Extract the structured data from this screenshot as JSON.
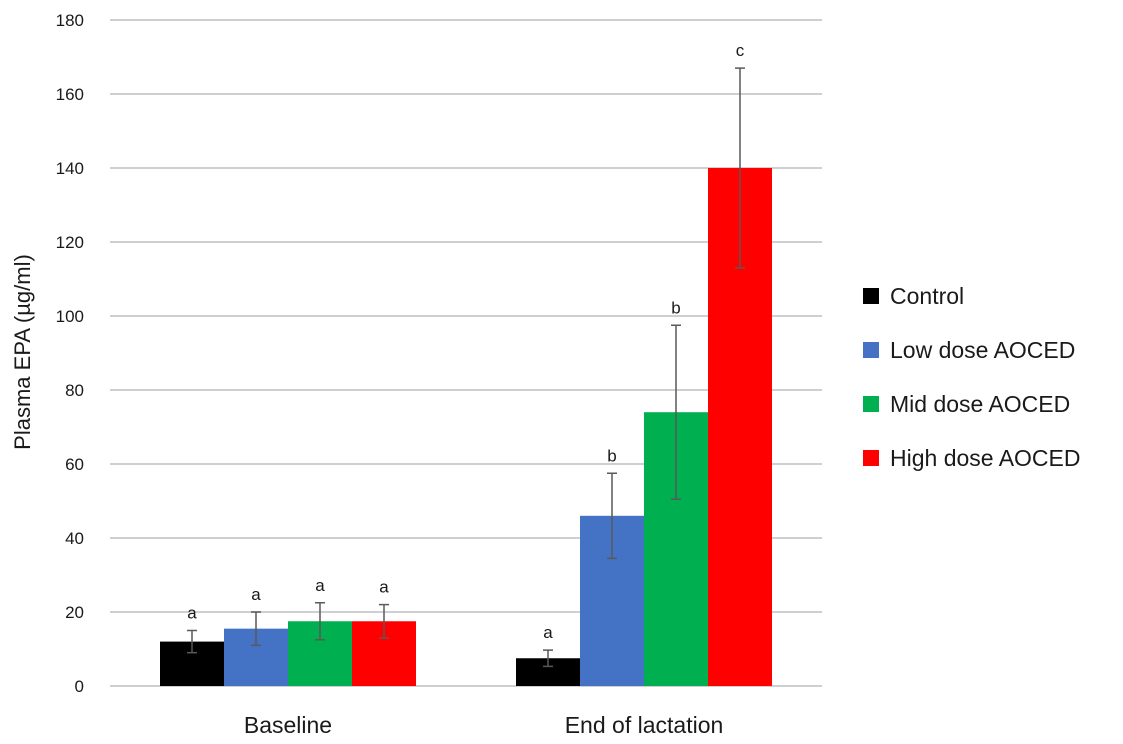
{
  "chart_data": {
    "type": "bar",
    "title": "",
    "xlabel": "",
    "ylabel": "Plasma EPA (µg/ml)",
    "ylim": [
      0,
      180
    ],
    "yticks": [
      0,
      20,
      40,
      60,
      80,
      100,
      120,
      140,
      160,
      180
    ],
    "grid": "horizontal",
    "legend_position": "right",
    "categories": [
      "Baseline",
      "End of lactation"
    ],
    "series": [
      {
        "name": "Control",
        "color": "#000000",
        "values": [
          12,
          7.5
        ],
        "errors": [
          3,
          2.2
        ],
        "labels": [
          "a",
          "a"
        ]
      },
      {
        "name": "Low dose AOCED",
        "color": "#4472C4",
        "values": [
          15.5,
          46
        ],
        "errors": [
          4.5,
          11.5
        ],
        "labels": [
          "a",
          "b"
        ]
      },
      {
        "name": "Mid dose AOCED",
        "color": "#00B050",
        "values": [
          17.5,
          74
        ],
        "errors": [
          5,
          23.5
        ],
        "labels": [
          "a",
          "b"
        ]
      },
      {
        "name": "High dose AOCED",
        "color": "#FF0000",
        "values": [
          17.5,
          140
        ],
        "errors": [
          4.5,
          27
        ],
        "labels": [
          "a",
          "c"
        ]
      }
    ]
  }
}
